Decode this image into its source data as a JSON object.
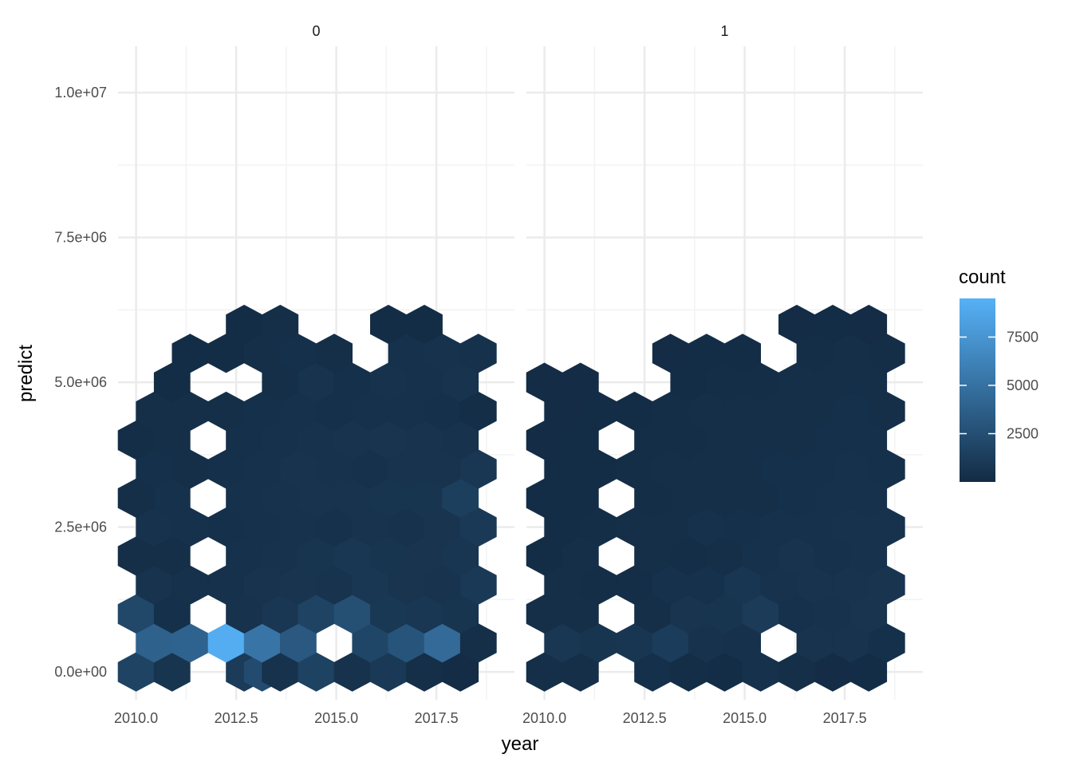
{
  "chart_data": {
    "type": "heatmap",
    "subtype": "hexbin",
    "xlabel": "year",
    "ylabel": "predict",
    "x_ticks": [
      2010,
      2012.5,
      2015,
      2017.5
    ],
    "x_tick_labels": [
      "2010.0",
      "2012.5",
      "2015.0",
      "2017.5"
    ],
    "y_ticks": [
      0,
      2500000,
      5000000,
      7500000,
      10000000
    ],
    "y_tick_labels": [
      "0.0e+00",
      "2.5e+06",
      "5.0e+06",
      "7.5e+06",
      "1.0e+07"
    ],
    "xlim": [
      2009.55,
      2019.45
    ],
    "ylim": [
      -480000,
      10800000
    ],
    "grid": true,
    "legend": {
      "title": "count",
      "position": "right",
      "breaks": [
        2500,
        5000,
        7500
      ],
      "break_labels": [
        "2500",
        "5000",
        "7500"
      ],
      "range": [
        1,
        9500
      ],
      "low_color": "#132B43",
      "high_color": "#56B1F7"
    },
    "hex": {
      "x_step": 0.45,
      "y_step": 500000,
      "rows": 21
    },
    "facets": [
      {
        "label": "0",
        "rows": [
          {
            "row": 0,
            "cells": [
              [
                0,
                1700
              ],
              [
                2,
                700
              ],
              [
                6,
                1100
              ],
              [
                7,
                2300
              ],
              [
                8,
                500
              ],
              [
                10,
                1600
              ],
              [
                12,
                500
              ],
              [
                14,
                1000
              ],
              [
                16,
                300
              ],
              [
                18,
                100
              ]
            ]
          },
          {
            "row": 1,
            "cells": [
              [
                1,
                3800
              ],
              [
                3,
                4000
              ],
              [
                5,
                9200
              ],
              [
                7,
                5200
              ],
              [
                9,
                3200
              ],
              [
                13,
                1900
              ],
              [
                15,
                2900
              ],
              [
                17,
                4500
              ],
              [
                19,
                250
              ]
            ]
          },
          {
            "row": 2,
            "cells": [
              [
                0,
                2000
              ],
              [
                2,
                350
              ],
              [
                6,
                500
              ],
              [
                8,
                800
              ],
              [
                10,
                1700
              ],
              [
                12,
                2600
              ],
              [
                14,
                900
              ],
              [
                16,
                800
              ],
              [
                18,
                700
              ]
            ]
          },
          {
            "row": 3,
            "cells": [
              [
                1,
                600
              ],
              [
                3,
                400
              ],
              [
                5,
                450
              ],
              [
                7,
                550
              ],
              [
                9,
                650
              ],
              [
                11,
                550
              ],
              [
                13,
                850
              ],
              [
                15,
                650
              ],
              [
                17,
                550
              ],
              [
                19,
                1000
              ]
            ]
          },
          {
            "row": 4,
            "cells": [
              [
                0,
                300
              ],
              [
                2,
                250
              ],
              [
                6,
                400
              ],
              [
                8,
                500
              ],
              [
                10,
                700
              ],
              [
                12,
                850
              ],
              [
                14,
                700
              ],
              [
                16,
                650
              ],
              [
                18,
                750
              ]
            ]
          },
          {
            "row": 5,
            "cells": [
              [
                1,
                500
              ],
              [
                3,
                450
              ],
              [
                5,
                350
              ],
              [
                7,
                400
              ],
              [
                9,
                500
              ],
              [
                11,
                450
              ],
              [
                13,
                550
              ],
              [
                15,
                500
              ],
              [
                17,
                650
              ],
              [
                19,
                1000
              ]
            ]
          },
          {
            "row": 6,
            "cells": [
              [
                0,
                300
              ],
              [
                2,
                400
              ],
              [
                6,
                450
              ],
              [
                8,
                500
              ],
              [
                10,
                600
              ],
              [
                12,
                550
              ],
              [
                14,
                700
              ],
              [
                16,
                700
              ],
              [
                18,
                1400
              ]
            ]
          },
          {
            "row": 7,
            "cells": [
              [
                1,
                350
              ],
              [
                3,
                300
              ],
              [
                5,
                350
              ],
              [
                7,
                450
              ],
              [
                9,
                550
              ],
              [
                11,
                500
              ],
              [
                13,
                450
              ],
              [
                15,
                550
              ],
              [
                17,
                550
              ],
              [
                19,
                850
              ]
            ]
          },
          {
            "row": 8,
            "cells": [
              [
                0,
                200
              ],
              [
                2,
                250
              ],
              [
                6,
                350
              ],
              [
                8,
                450
              ],
              [
                10,
                500
              ],
              [
                12,
                600
              ],
              [
                14,
                650
              ],
              [
                16,
                600
              ],
              [
                18,
                500
              ]
            ]
          },
          {
            "row": 9,
            "cells": [
              [
                1,
                300
              ],
              [
                3,
                250
              ],
              [
                5,
                250
              ],
              [
                7,
                350
              ],
              [
                9,
                400
              ],
              [
                11,
                350
              ],
              [
                13,
                450
              ],
              [
                15,
                450
              ],
              [
                17,
                350
              ],
              [
                19,
                200
              ]
            ]
          },
          {
            "row": 10,
            "cells": [
              [
                2,
                150
              ],
              [
                8,
                300
              ],
              [
                10,
                550
              ],
              [
                12,
                350
              ],
              [
                14,
                500
              ],
              [
                16,
                400
              ],
              [
                18,
                550
              ]
            ]
          },
          {
            "row": 11,
            "cells": [
              [
                3,
                150
              ],
              [
                5,
                150
              ],
              [
                7,
                250
              ],
              [
                9,
                350
              ],
              [
                11,
                250
              ],
              [
                15,
                450
              ],
              [
                17,
                500
              ],
              [
                19,
                450
              ]
            ]
          },
          {
            "row": 12,
            "cells": [
              [
                6,
                150
              ],
              [
                8,
                250
              ],
              [
                14,
                150
              ],
              [
                16,
                150
              ]
            ]
          }
        ]
      },
      {
        "label": "1",
        "rows": [
          {
            "row": 0,
            "cells": [
              [
                0,
                250
              ],
              [
                2,
                300
              ],
              [
                6,
                350
              ],
              [
                8,
                200
              ],
              [
                10,
                150
              ],
              [
                12,
                400
              ],
              [
                14,
                250
              ],
              [
                16,
                100
              ],
              [
                18,
                150
              ]
            ]
          },
          {
            "row": 1,
            "cells": [
              [
                1,
                800
              ],
              [
                3,
                700
              ],
              [
                5,
                750
              ],
              [
                7,
                1200
              ],
              [
                9,
                500
              ],
              [
                11,
                450
              ],
              [
                15,
                550
              ],
              [
                17,
                600
              ],
              [
                19,
                350
              ]
            ]
          },
          {
            "row": 2,
            "cells": [
              [
                0,
                250
              ],
              [
                2,
                250
              ],
              [
                6,
                300
              ],
              [
                8,
                650
              ],
              [
                10,
                700
              ],
              [
                12,
                1100
              ],
              [
                14,
                450
              ],
              [
                16,
                500
              ],
              [
                18,
                650
              ]
            ]
          },
          {
            "row": 3,
            "cells": [
              [
                1,
                300
              ],
              [
                3,
                200
              ],
              [
                5,
                200
              ],
              [
                7,
                400
              ],
              [
                9,
                450
              ],
              [
                11,
                750
              ],
              [
                13,
                500
              ],
              [
                15,
                550
              ],
              [
                17,
                550
              ],
              [
                19,
                650
              ]
            ]
          },
          {
            "row": 4,
            "cells": [
              [
                0,
                150
              ],
              [
                2,
                250
              ],
              [
                6,
                250
              ],
              [
                8,
                200
              ],
              [
                10,
                300
              ],
              [
                12,
                450
              ],
              [
                14,
                550
              ],
              [
                16,
                400
              ],
              [
                18,
                500
              ]
            ]
          },
          {
            "row": 5,
            "cells": [
              [
                1,
                150
              ],
              [
                3,
                200
              ],
              [
                5,
                250
              ],
              [
                7,
                300
              ],
              [
                9,
                400
              ],
              [
                11,
                350
              ],
              [
                13,
                400
              ],
              [
                15,
                450
              ],
              [
                17,
                500
              ],
              [
                19,
                500
              ]
            ]
          },
          {
            "row": 6,
            "cells": [
              [
                0,
                150
              ],
              [
                2,
                150
              ],
              [
                6,
                200
              ],
              [
                8,
                250
              ],
              [
                10,
                300
              ],
              [
                12,
                300
              ],
              [
                14,
                350
              ],
              [
                16,
                400
              ],
              [
                18,
                450
              ]
            ]
          },
          {
            "row": 7,
            "cells": [
              [
                1,
                150
              ],
              [
                3,
                150
              ],
              [
                5,
                200
              ],
              [
                7,
                250
              ],
              [
                9,
                250
              ],
              [
                11,
                300
              ],
              [
                13,
                350
              ],
              [
                15,
                350
              ],
              [
                17,
                400
              ],
              [
                19,
                350
              ]
            ]
          },
          {
            "row": 8,
            "cells": [
              [
                0,
                100
              ],
              [
                2,
                150
              ],
              [
                6,
                200
              ],
              [
                8,
                200
              ],
              [
                10,
                250
              ],
              [
                12,
                300
              ],
              [
                14,
                300
              ],
              [
                16,
                350
              ],
              [
                18,
                350
              ]
            ]
          },
          {
            "row": 9,
            "cells": [
              [
                1,
                100
              ],
              [
                3,
                150
              ],
              [
                5,
                150
              ],
              [
                7,
                200
              ],
              [
                9,
                250
              ],
              [
                11,
                250
              ],
              [
                13,
                300
              ],
              [
                15,
                300
              ],
              [
                17,
                350
              ],
              [
                19,
                300
              ]
            ]
          },
          {
            "row": 10,
            "cells": [
              [
                0,
                100
              ],
              [
                2,
                100
              ],
              [
                8,
                150
              ],
              [
                10,
                200
              ],
              [
                12,
                200
              ],
              [
                14,
                250
              ],
              [
                16,
                250
              ],
              [
                18,
                300
              ]
            ]
          },
          {
            "row": 11,
            "cells": [
              [
                7,
                100
              ],
              [
                9,
                150
              ],
              [
                11,
                150
              ],
              [
                15,
                200
              ],
              [
                17,
                250
              ],
              [
                19,
                200
              ]
            ]
          },
          {
            "row": 12,
            "cells": [
              [
                14,
                100
              ],
              [
                16,
                150
              ],
              [
                18,
                100
              ]
            ]
          }
        ]
      }
    ]
  }
}
